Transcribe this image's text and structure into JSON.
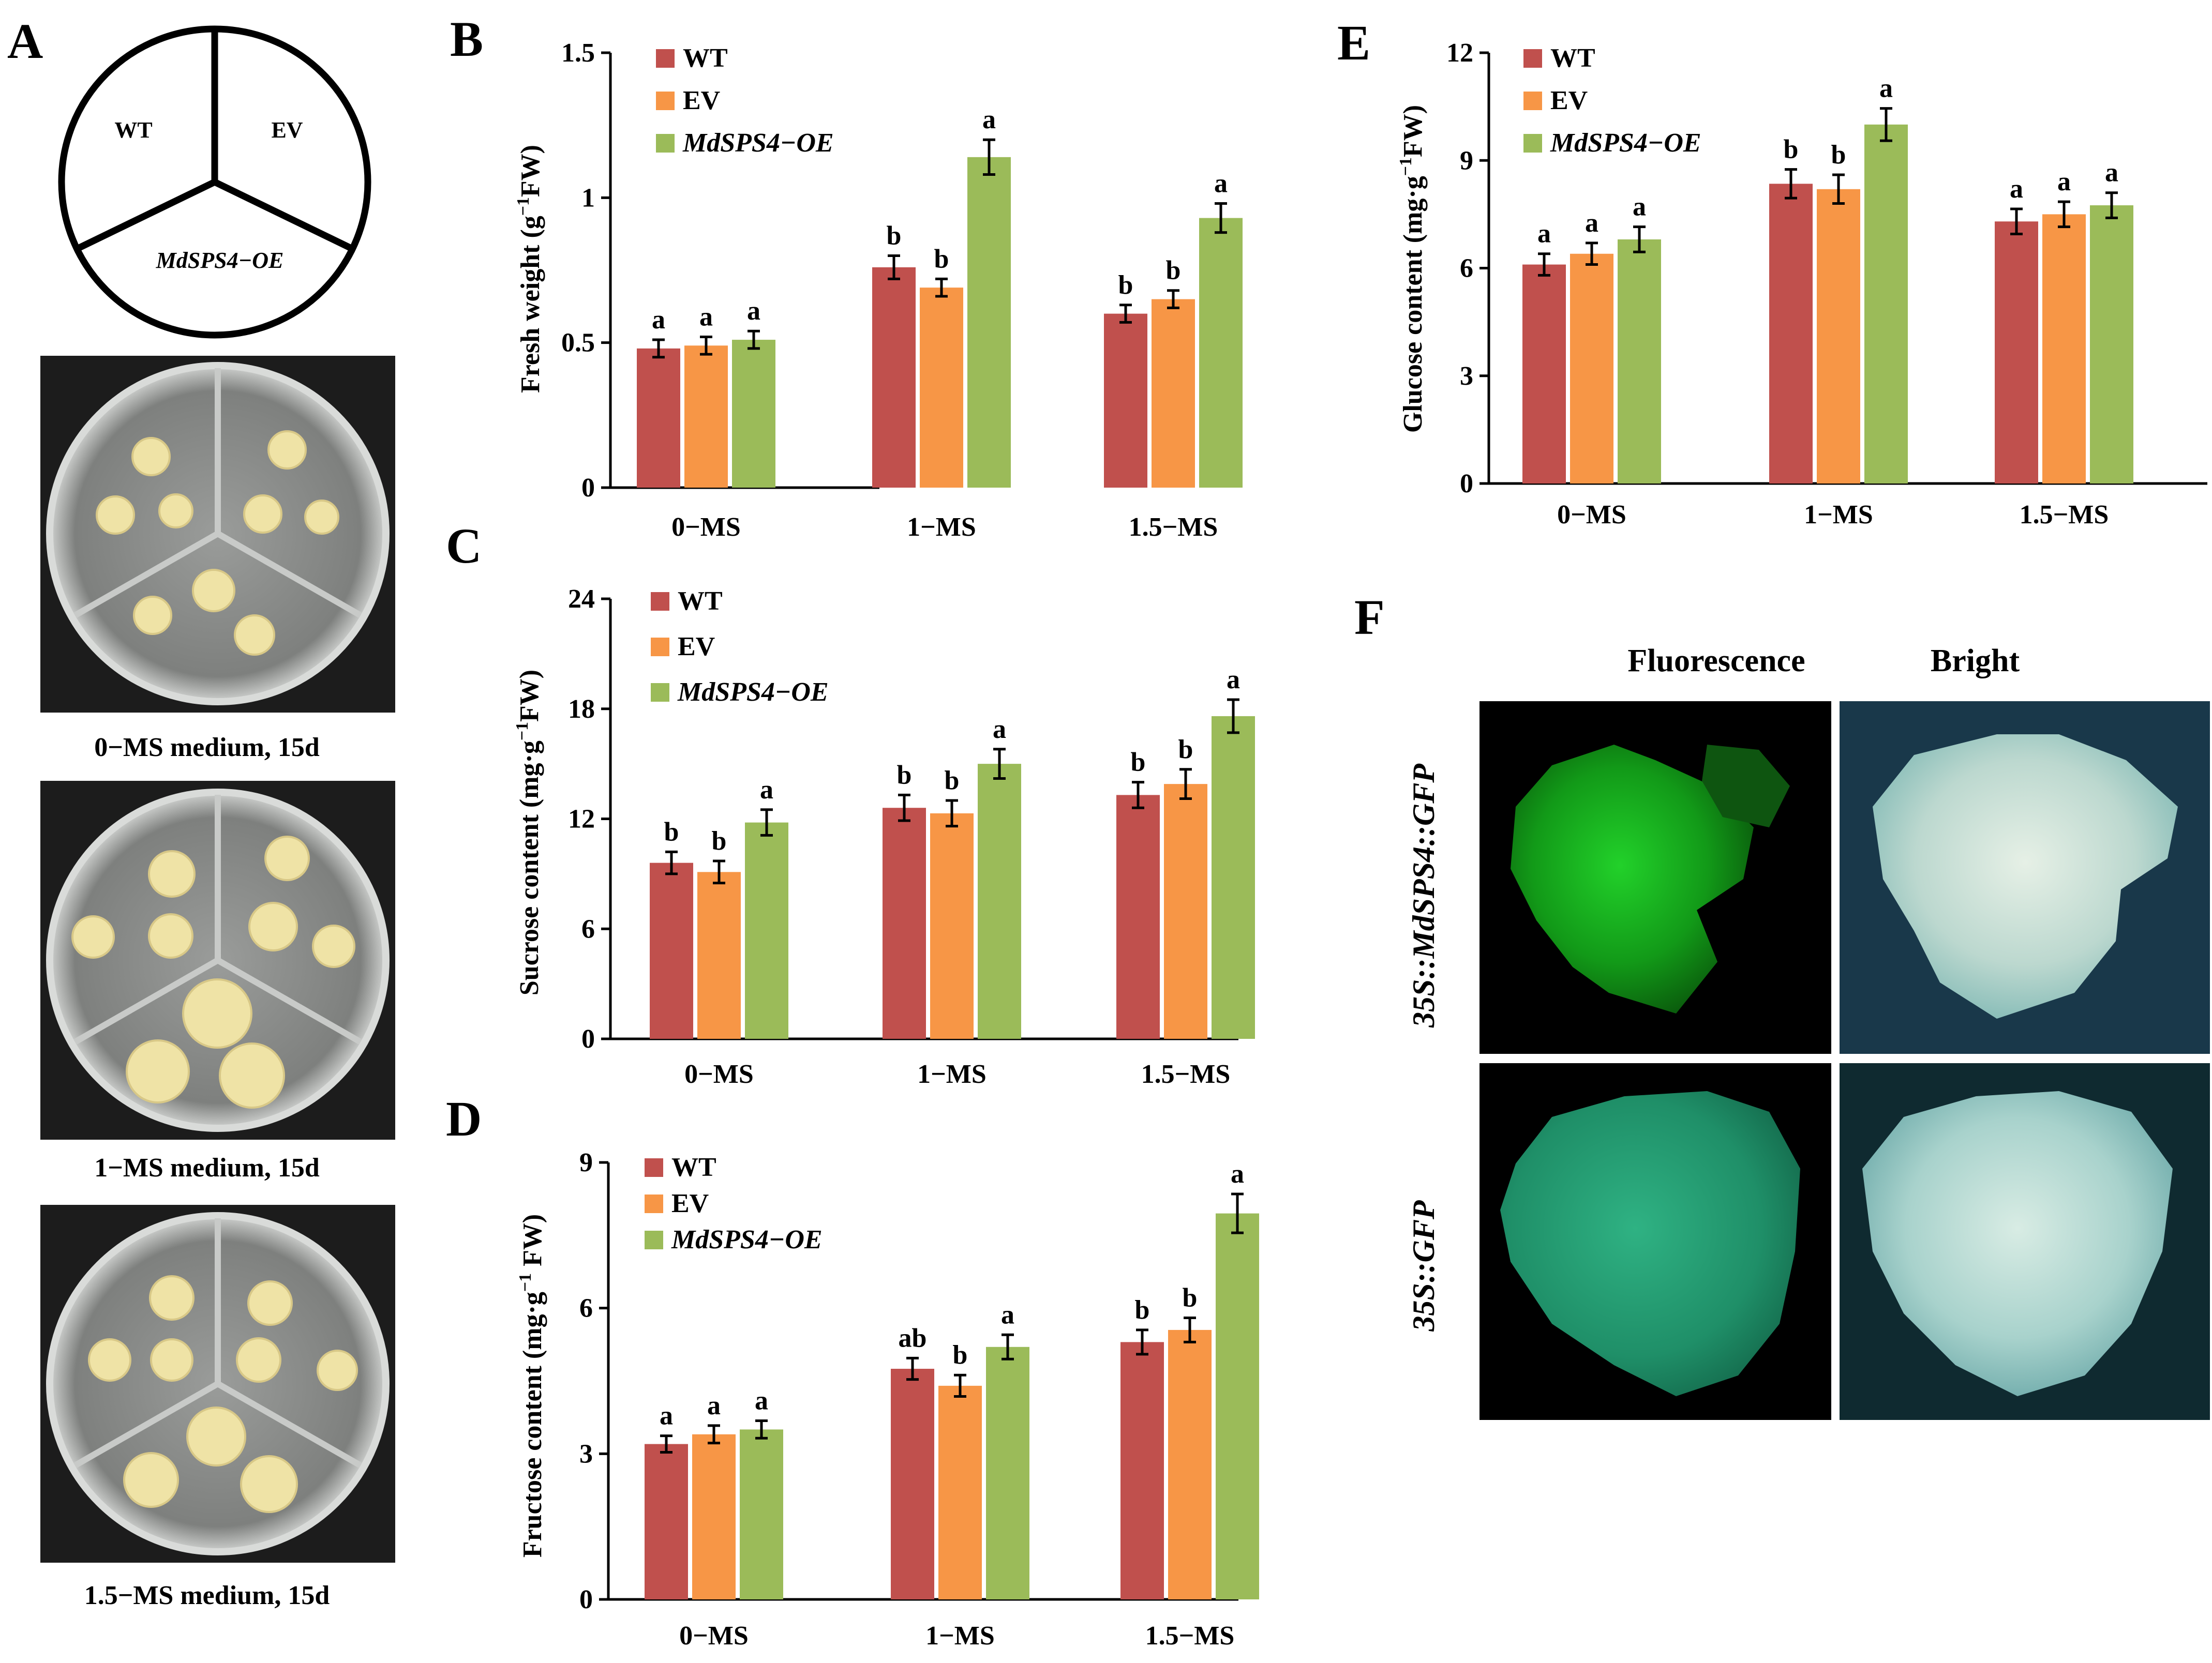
{
  "panel_a": {
    "letter": "A",
    "diagram": {
      "sector_top_left": "WT",
      "sector_top_right": "EV",
      "sector_bottom": "MdSPS4−OE"
    },
    "captions": [
      "0−MS medium, 15d",
      "1−MS medium, 15d",
      "1.5−MS medium, 15d"
    ]
  },
  "panel_f": {
    "letter": "F",
    "col_headers": [
      "Fluorescence",
      "Bright"
    ],
    "row_labels": [
      "35S::MdSPS4::GFP",
      "35S::GFP"
    ]
  },
  "colors": {
    "wt": "#C0504D",
    "ev": "#F79646",
    "oe": "#9BBB59",
    "axis": "#000000"
  },
  "chart_data": [
    {
      "id": "B",
      "letter": "B",
      "type": "bar",
      "ylabel_parts": [
        "Fresh weight (g",
        "−1",
        "FW)"
      ],
      "yticks": [
        "0",
        "0.5",
        "1",
        "1.5"
      ],
      "ylim": [
        0,
        1.5
      ],
      "categories": [
        "0−MS",
        "1−MS",
        "1.5−MS"
      ],
      "legend": [
        "WT",
        "EV",
        "MdSPS4−OE"
      ],
      "series": [
        {
          "name": "WT",
          "values": [
            0.48,
            0.76,
            0.6
          ],
          "errors": [
            0.03,
            0.04,
            0.03
          ],
          "letters": [
            "a",
            "b",
            "b"
          ]
        },
        {
          "name": "EV",
          "values": [
            0.49,
            0.69,
            0.65
          ],
          "errors": [
            0.03,
            0.03,
            0.03
          ],
          "letters": [
            "a",
            "b",
            "b"
          ]
        },
        {
          "name": "MdSPS4−OE",
          "values": [
            0.51,
            1.14,
            0.93
          ],
          "errors": [
            0.03,
            0.06,
            0.05
          ],
          "letters": [
            "a",
            "a",
            "a"
          ]
        }
      ]
    },
    {
      "id": "C",
      "letter": "C",
      "type": "bar",
      "ylabel_parts": [
        "Sucrose content (mg·g",
        "−1",
        "FW)"
      ],
      "yticks": [
        "0",
        "6",
        "12",
        "18",
        "24"
      ],
      "ylim": [
        0,
        24
      ],
      "categories": [
        "0−MS",
        "1−MS",
        "1.5−MS"
      ],
      "legend": [
        "WT",
        "EV",
        "MdSPS4−OE"
      ],
      "series": [
        {
          "name": "WT",
          "values": [
            9.6,
            12.6,
            13.3
          ],
          "errors": [
            0.6,
            0.7,
            0.7
          ],
          "letters": [
            "b",
            "b",
            "b"
          ]
        },
        {
          "name": "EV",
          "values": [
            9.1,
            12.3,
            13.9
          ],
          "errors": [
            0.6,
            0.7,
            0.8
          ],
          "letters": [
            "b",
            "b",
            "b"
          ]
        },
        {
          "name": "MdSPS4−OE",
          "values": [
            11.8,
            15.0,
            17.6
          ],
          "errors": [
            0.7,
            0.8,
            0.9
          ],
          "letters": [
            "a",
            "a",
            "a"
          ]
        }
      ]
    },
    {
      "id": "D",
      "letter": "D",
      "type": "bar",
      "ylabel_parts": [
        "Fructose content (mg·g",
        "−1",
        " FW)"
      ],
      "yticks": [
        "0",
        "3",
        "6",
        "9"
      ],
      "ylim": [
        0,
        9
      ],
      "categories": [
        "0−MS",
        "1−MS",
        "1.5−MS"
      ],
      "legend": [
        "WT",
        "EV",
        "MdSPS4−OE"
      ],
      "series": [
        {
          "name": "WT",
          "values": [
            3.2,
            4.75,
            5.3
          ],
          "errors": [
            0.17,
            0.22,
            0.25
          ],
          "letters": [
            "a",
            "ab",
            "b"
          ]
        },
        {
          "name": "EV",
          "values": [
            3.4,
            4.4,
            5.55
          ],
          "errors": [
            0.18,
            0.22,
            0.25
          ],
          "letters": [
            "a",
            "b",
            "b"
          ]
        },
        {
          "name": "MdSPS4−OE",
          "values": [
            3.5,
            5.2,
            7.95
          ],
          "errors": [
            0.18,
            0.25,
            0.4
          ],
          "letters": [
            "a",
            "a",
            "a"
          ]
        }
      ]
    },
    {
      "id": "E",
      "letter": "E",
      "type": "bar",
      "ylabel_parts": [
        "Glucose content (mg·g",
        "−1",
        "FW)"
      ],
      "yticks": [
        "0",
        "3",
        "6",
        "9",
        "12"
      ],
      "ylim": [
        0,
        12
      ],
      "categories": [
        "0−MS",
        "1−MS",
        "1.5−MS"
      ],
      "legend": [
        "WT",
        "EV",
        "MdSPS4−OE"
      ],
      "series": [
        {
          "name": "WT",
          "values": [
            6.1,
            8.35,
            7.3
          ],
          "errors": [
            0.3,
            0.4,
            0.35
          ],
          "letters": [
            "a",
            "b",
            "a"
          ]
        },
        {
          "name": "EV",
          "values": [
            6.4,
            8.2,
            7.5
          ],
          "errors": [
            0.3,
            0.4,
            0.35
          ],
          "letters": [
            "a",
            "b",
            "a"
          ]
        },
        {
          "name": "MdSPS4−OE",
          "values": [
            6.8,
            10.0,
            7.75
          ],
          "errors": [
            0.35,
            0.45,
            0.35
          ],
          "letters": [
            "a",
            "a",
            "a"
          ]
        }
      ]
    }
  ]
}
